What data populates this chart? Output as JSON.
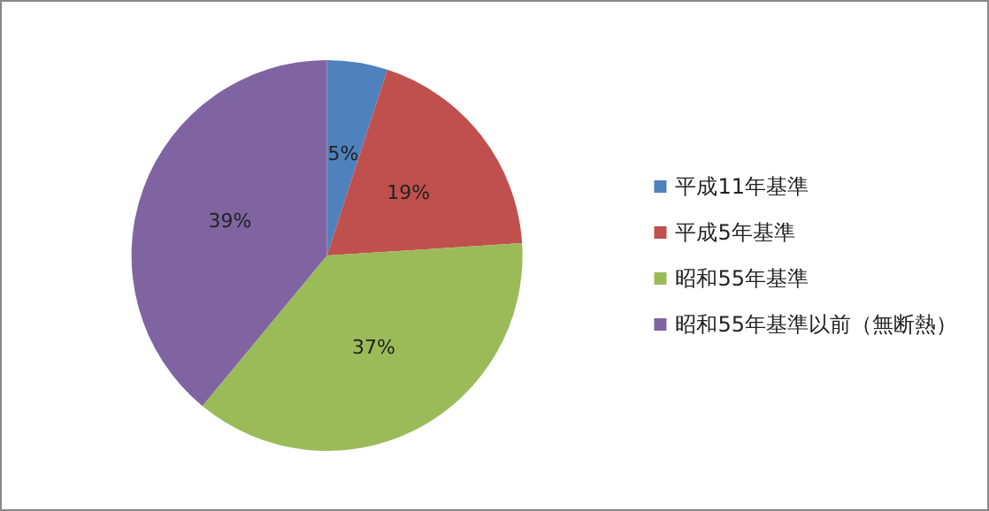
{
  "chart_data": {
    "type": "pie",
    "categories": [
      "平成11年基準",
      "平成5年基準",
      "昭和55年基準",
      "昭和55年基準以前（無断熱）"
    ],
    "values": [
      5,
      19,
      37,
      39
    ],
    "colors": [
      "#4f81bd",
      "#c0504d",
      "#9bbb59",
      "#8064a2"
    ],
    "value_labels": [
      "5%",
      "19%",
      "37%",
      "39%"
    ],
    "legend": "right"
  }
}
